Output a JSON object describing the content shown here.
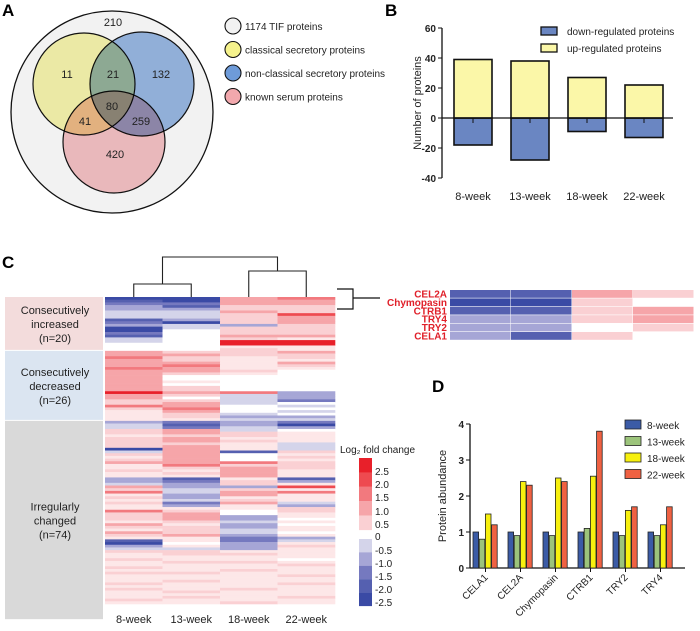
{
  "panels": {
    "a": "A",
    "b": "B",
    "c": "C",
    "d": "D"
  },
  "chart_data": [
    {
      "type": "venn",
      "panel": "A",
      "legend": [
        "1174 TIF proteins",
        "classical secretory proteins",
        "non-classical secretory proteins",
        "known serum proteins"
      ],
      "colors": [
        "#f2f2f2",
        "#f5f28c",
        "#6e9bd9",
        "#f2a8ad"
      ],
      "regions": {
        "outside_only": 210,
        "classical_only": 11,
        "classical_nonclassical": 21,
        "nonclassical_only": 132,
        "all_three": 80,
        "classical_serum": 41,
        "nonclassical_serum": 259,
        "serum_only": 420
      }
    },
    {
      "type": "bar",
      "panel": "B",
      "ylabel": "Number of proteins",
      "ylim": [
        -40,
        60
      ],
      "yticks": [
        60,
        40,
        20,
        0,
        -20,
        -40
      ],
      "categories": [
        "8-week",
        "13-week",
        "18-week",
        "22-week"
      ],
      "series": [
        {
          "name": "down-regulated proteins",
          "color": "#6a86c2",
          "values": [
            -18,
            -28,
            -9,
            -13
          ]
        },
        {
          "name": "up-regulated proteins",
          "color": "#fbf7a8",
          "values": [
            39,
            38,
            27,
            22
          ]
        }
      ],
      "legend": "top-right"
    },
    {
      "type": "heatmap",
      "panel": "C",
      "columns": [
        "8-week",
        "13-week",
        "18-week",
        "22-week"
      ],
      "groups": [
        {
          "label": [
            "Consecutively",
            "increased",
            "(n=20)"
          ],
          "n": 20,
          "color": "#f3dcdc"
        },
        {
          "label": [
            "Consecutively",
            "decreased",
            "(n=26)"
          ],
          "n": 26,
          "color": "#dbe5f1"
        },
        {
          "label": [
            "Irregularly",
            "changed",
            "(n=74)"
          ],
          "n": 74,
          "color": "#d9d9d9"
        }
      ],
      "colorbar": {
        "title": "Log₂ fold change",
        "ticks": [
          "2.5",
          "2.0",
          "1.5",
          "1.0",
          "0.5",
          "0",
          "-0.5",
          "-1.0",
          "-1.5",
          "-2.0",
          "-2.5"
        ]
      },
      "rows": [
        [
          -2.3,
          -2.3,
          1.1,
          1.6
        ],
        [
          -2.0,
          -2.2,
          1.0,
          1.3
        ],
        [
          -1.5,
          -1.3,
          1.0,
          1.2
        ],
        [
          -0.6,
          -2.0,
          0.9,
          0.8
        ],
        [
          -0.8,
          -0.6,
          0.6,
          0.9
        ],
        [
          -0.5,
          -0.4,
          1.0,
          0.7
        ],
        [
          -0.3,
          -0.4,
          0.8,
          2.0
        ],
        [
          -0.4,
          -0.3,
          0.6,
          1.2
        ],
        [
          -1.6,
          -1.0,
          0.5,
          1.2
        ],
        [
          -1.4,
          -2.4,
          0.7,
          1.0
        ],
        [
          -0.8,
          -0.5,
          -0.8,
          0.9
        ],
        [
          -2.3,
          -0.2,
          0.6,
          0.5
        ],
        [
          -2.4,
          0,
          0.9,
          0.8
        ],
        [
          -1.2,
          0,
          0.5,
          0.6
        ],
        [
          -2.0,
          0,
          1.2,
          1.0
        ],
        [
          -0.3,
          0,
          0.5,
          0.4
        ],
        [
          -0.2,
          0,
          2.6,
          2.5
        ],
        [
          -0.1,
          0,
          2.7,
          2.6
        ],
        [
          -0.1,
          0,
          0.4,
          0.3
        ],
        [
          -0.1,
          0,
          0.5,
          0.4
        ],
        [
          1.0,
          0.8,
          0.6,
          1.4
        ],
        [
          1.0,
          1.4,
          0.5,
          0.6
        ],
        [
          1.6,
          0.8,
          0.4,
          0.5
        ],
        [
          1.0,
          0.6,
          0.3,
          0.3
        ],
        [
          1.0,
          1.0,
          0.4,
          1.1
        ],
        [
          1.0,
          1.5,
          0.2,
          0.5
        ],
        [
          1.5,
          1.0,
          0.3,
          0.2
        ],
        [
          1.0,
          1.0,
          0.5,
          0.1
        ],
        [
          1.0,
          0.5,
          0.4,
          0
        ],
        [
          1.0,
          0,
          0,
          0
        ],
        [
          1.0,
          0,
          0,
          0
        ],
        [
          1.0,
          0.3,
          0,
          0
        ],
        [
          1.0,
          0,
          0,
          0
        ],
        [
          1.0,
          0.5,
          0,
          0
        ],
        [
          1.0,
          0.6,
          0,
          0
        ],
        [
          2.8,
          1.0,
          1.6,
          -0.6
        ],
        [
          1.0,
          0.5,
          -0.5,
          -1.0
        ],
        [
          1.0,
          0,
          -0.5,
          -0.6
        ],
        [
          0.6,
          0.5,
          -0.5,
          -1.2
        ],
        [
          0.5,
          1.0,
          -0.5,
          0
        ],
        [
          1.6,
          1.0,
          0,
          -0.3
        ],
        [
          0.5,
          1.8,
          0,
          0
        ],
        [
          0.4,
          1.0,
          0,
          -0.4
        ],
        [
          0.3,
          0.5,
          -0.5,
          0
        ],
        [
          0.4,
          0.5,
          -0.6,
          -1.0
        ],
        [
          0.3,
          0.4,
          -0.4,
          -0.4
        ],
        [
          -0.8,
          -1.5,
          -1.0,
          -1.5
        ],
        [
          -0.5,
          -1.8,
          -0.6,
          -2.2
        ],
        [
          -0.4,
          -1.4,
          -0.5,
          -0.8
        ],
        [
          0.5,
          1.0,
          -0.5,
          0
        ],
        [
          0.5,
          1.0,
          0.5,
          0.3
        ],
        [
          0.3,
          0.8,
          0.6,
          0.4
        ],
        [
          0.5,
          1.2,
          0.3,
          0.2
        ],
        [
          0.6,
          1.0,
          0.5,
          0.4
        ],
        [
          0.5,
          0.8,
          0.3,
          -0.4
        ],
        [
          0.5,
          1.0,
          0.3,
          -0.5
        ],
        [
          -2.2,
          1.0,
          0.4,
          -0.4
        ],
        [
          -0.5,
          1.0,
          -2.0,
          0.5
        ],
        [
          0.5,
          1.0,
          0,
          0.4
        ],
        [
          0.2,
          1.0,
          0,
          0.5
        ],
        [
          0.6,
          1.0,
          0,
          0.2
        ],
        [
          1.0,
          1.0,
          1.6,
          0.6
        ],
        [
          0.4,
          1.6,
          0.5,
          0.5
        ],
        [
          0.2,
          0.5,
          1.0,
          0.5
        ],
        [
          0.5,
          0.2,
          1.0,
          0.2
        ],
        [
          0.4,
          0.6,
          1.0,
          0.4
        ],
        [
          0.2,
          0.3,
          1.0,
          0.2
        ],
        [
          -0.6,
          -1.8,
          0.4,
          -1.6
        ],
        [
          -1.0,
          -1.2,
          0.5,
          -0.8
        ],
        [
          -0.4,
          -1.0,
          0.5,
          0.3
        ],
        [
          1.0,
          -1.0,
          -0.6,
          2.0
        ],
        [
          0.5,
          -0.5,
          0.5,
          0.4
        ],
        [
          1.6,
          -0.5,
          1.0,
          1.6
        ],
        [
          0.4,
          -1.0,
          1.0,
          0.3
        ],
        [
          0.5,
          -1.0,
          0.4,
          0.2
        ],
        [
          0.3,
          -0.5,
          0.6,
          0.4
        ],
        [
          0.5,
          -1.2,
          1.0,
          -0.4
        ],
        [
          0.3,
          -1.0,
          0.3,
          -0.8
        ],
        [
          0.2,
          0.4,
          0.2,
          0.6
        ],
        [
          1.6,
          0.6,
          0.1,
          0.5
        ],
        [
          0.6,
          1.0,
          0,
          0.2
        ],
        [
          0.6,
          1.2,
          -0.8,
          0.2
        ],
        [
          0.5,
          1.0,
          -0.6,
          0
        ],
        [
          0.4,
          0.5,
          -0.5,
          0.3
        ],
        [
          1.0,
          0.3,
          -0.8,
          0
        ],
        [
          0.6,
          0.5,
          -0.6,
          0.2
        ],
        [
          0.2,
          0.8,
          -0.5,
          0.3
        ],
        [
          1.0,
          0.5,
          -0.5,
          0
        ],
        [
          0.5,
          1.0,
          -0.6,
          0.3
        ],
        [
          0.3,
          0.4,
          -1.4,
          -0.8
        ],
        [
          -1.8,
          0.4,
          -1.2,
          -0.4
        ],
        [
          -2.4,
          0,
          -0.7,
          0.4
        ],
        [
          -1.0,
          0.3,
          -1.0,
          0.5
        ],
        [
          -0.5,
          -0.4,
          -0.8,
          0.2
        ],
        [
          0.6,
          0.5,
          0.3,
          0.4
        ],
        [
          0.4,
          0.6,
          0.5,
          0.2
        ],
        [
          0.3,
          0.2,
          0.4,
          0.3
        ],
        [
          0.5,
          0.4,
          0.2,
          0.1
        ],
        [
          0.2,
          0.5,
          0.6,
          0.4
        ],
        [
          0.4,
          0.3,
          0.2,
          0.5
        ],
        [
          0.6,
          0.2,
          0.3,
          0.3
        ],
        [
          0.3,
          0.4,
          0.5,
          0.2
        ],
        [
          0.5,
          0.6,
          0.2,
          0.4
        ],
        [
          0.2,
          0.3,
          0.4,
          0.5
        ],
        [
          0.4,
          0.2,
          0.3,
          0.2
        ],
        [
          0.3,
          0.5,
          0.2,
          0.3
        ],
        [
          0.6,
          0.3,
          0.4,
          0.5
        ],
        [
          0.2,
          0.4,
          0.3,
          0.2
        ],
        [
          0.5,
          0.2,
          0.5,
          0.4
        ],
        [
          0.3,
          0.6,
          0.2,
          0.3
        ],
        [
          0.4,
          0.3,
          0.4,
          0.2
        ],
        [
          0.2,
          0.5,
          0.3,
          0.5
        ],
        [
          0.5,
          0.2,
          0.2,
          0.3
        ],
        [
          0.3,
          0.4,
          0.5,
          0.4
        ]
      ]
    },
    {
      "type": "heatmap",
      "panel": "C-inset",
      "rows_labels": [
        "CEL2A",
        "Chymopasin",
        "CTRB1",
        "TRY4",
        "TRY2",
        "CELA1"
      ],
      "rows": [
        [
          -2.0,
          -2.0,
          1.2,
          0.5
        ],
        [
          -2.5,
          -2.2,
          0.5,
          0
        ],
        [
          -1.8,
          -1.8,
          0.5,
          1.2
        ],
        [
          -0.8,
          -0.8,
          0.5,
          1.2
        ],
        [
          -1.0,
          -1.0,
          0,
          0.5
        ],
        [
          -0.8,
          -1.8,
          0.5,
          0
        ]
      ]
    },
    {
      "type": "bar",
      "panel": "D",
      "ylabel": "Protein abundance",
      "ylim": [
        0,
        4
      ],
      "yticks": [
        0,
        1,
        2,
        3,
        4
      ],
      "categories": [
        "CELA1",
        "CEL2A",
        "Chymopasin",
        "CTRB1",
        "TRY2",
        "TRY4"
      ],
      "series": [
        {
          "name": "8-week",
          "color": "#3b5ba6",
          "values": [
            1,
            1,
            1,
            1,
            1,
            1
          ]
        },
        {
          "name": "13-week",
          "color": "#9cc47b",
          "values": [
            0.8,
            0.9,
            0.9,
            1.1,
            0.9,
            0.9
          ]
        },
        {
          "name": "18-week",
          "color": "#f7f00e",
          "values": [
            1.5,
            2.4,
            2.5,
            2.55,
            1.6,
            1.2
          ]
        },
        {
          "name": "22-week",
          "color": "#ef6142",
          "values": [
            1.2,
            2.3,
            2.4,
            3.8,
            1.7,
            1.7
          ]
        }
      ],
      "legend": "top-right"
    }
  ]
}
